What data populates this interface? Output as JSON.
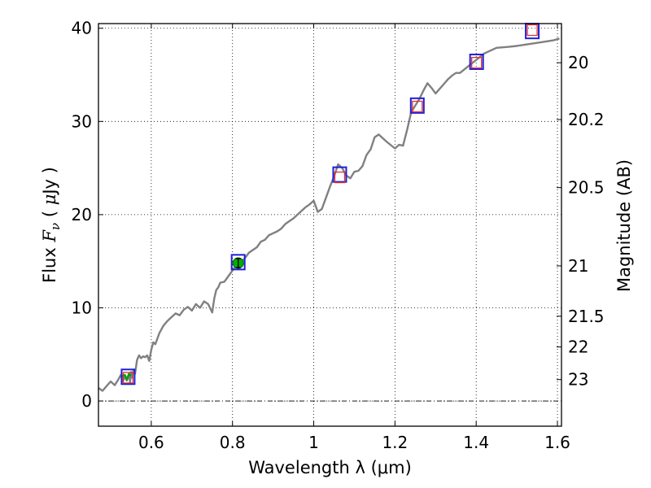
{
  "chart_data": {
    "type": "line",
    "xlabel": "Wavelength  λ (μm)",
    "ylabel_parts": [
      "Flux  ",
      "F",
      "ν",
      "  (  ",
      "μ",
      "Jy )"
    ],
    "ylabel_right": "Magnitude (AB)",
    "xlim": [
      0.47,
      1.61
    ],
    "ylim": [
      -2.7,
      40.5
    ],
    "x_ticks": [
      0.6,
      0.8,
      1.0,
      1.2,
      1.4,
      1.6
    ],
    "x_tick_labels": [
      "0.6",
      "0.8",
      "1",
      "1.2",
      "1.4",
      "1.6"
    ],
    "y_ticks": [
      0,
      10,
      20,
      30,
      40
    ],
    "y_tick_labels": [
      "0",
      "10",
      "20",
      "30",
      "40"
    ],
    "right_ticks": [
      {
        "label": "20",
        "flux": 36.3
      },
      {
        "label": "20.2",
        "flux": 30.2
      },
      {
        "label": "20.5",
        "flux": 22.9
      },
      {
        "label": "21",
        "flux": 14.5
      },
      {
        "label": "21.5",
        "flux": 9.1
      },
      {
        "label": "22",
        "flux": 5.8
      },
      {
        "label": "23",
        "flux": 2.3
      }
    ],
    "grid": true,
    "zero_line": 0,
    "series": [
      {
        "color": "#808080",
        "x": [
          0.47,
          0.48,
          0.49,
          0.5,
          0.51,
          0.52,
          0.525,
          0.53,
          0.535,
          0.54,
          0.545,
          0.548,
          0.55,
          0.553,
          0.556,
          0.56,
          0.565,
          0.57,
          0.575,
          0.58,
          0.585,
          0.59,
          0.595,
          0.6,
          0.605,
          0.61,
          0.62,
          0.63,
          0.64,
          0.65,
          0.66,
          0.67,
          0.68,
          0.69,
          0.7,
          0.71,
          0.72,
          0.73,
          0.74,
          0.75,
          0.755,
          0.76,
          0.765,
          0.77,
          0.78,
          0.79,
          0.8,
          0.81,
          0.82,
          0.83,
          0.84,
          0.85,
          0.86,
          0.87,
          0.88,
          0.89,
          0.9,
          0.91,
          0.92,
          0.93,
          0.94,
          0.95,
          0.96,
          0.97,
          0.98,
          0.99,
          1.0,
          1.01,
          1.02,
          1.03,
          1.04,
          1.05,
          1.06,
          1.07,
          1.08,
          1.09,
          1.1,
          1.11,
          1.12,
          1.13,
          1.14,
          1.15,
          1.16,
          1.18,
          1.2,
          1.21,
          1.22,
          1.23,
          1.24,
          1.26,
          1.27,
          1.28,
          1.29,
          1.3,
          1.31,
          1.32,
          1.33,
          1.34,
          1.35,
          1.36,
          1.38,
          1.4,
          1.42,
          1.45,
          1.48,
          1.5,
          1.53,
          1.56,
          1.59,
          1.605
        ],
        "y": [
          1.4,
          1.1,
          1.6,
          2.1,
          1.7,
          2.4,
          2.8,
          2.1,
          2.6,
          2.2,
          2.9,
          2.0,
          3.1,
          2.5,
          3.3,
          2.9,
          4.4,
          4.9,
          4.6,
          4.8,
          4.7,
          4.9,
          4.3,
          5.5,
          6.3,
          6.1,
          7.3,
          8.1,
          8.6,
          9.0,
          9.4,
          9.2,
          9.8,
          10.1,
          9.7,
          10.4,
          10.0,
          10.7,
          10.4,
          9.5,
          11.0,
          11.9,
          12.2,
          12.7,
          12.8,
          13.4,
          14.0,
          14.6,
          14.9,
          15.3,
          15.9,
          16.2,
          16.5,
          17.1,
          17.3,
          17.8,
          18.0,
          18.2,
          18.5,
          19.0,
          19.3,
          19.6,
          20.0,
          20.4,
          20.8,
          21.1,
          21.5,
          20.3,
          20.6,
          21.8,
          23.0,
          24.1,
          25.4,
          25.0,
          24.2,
          23.9,
          24.6,
          24.7,
          25.2,
          26.4,
          27.0,
          28.3,
          28.6,
          27.8,
          27.1,
          27.5,
          27.4,
          29.1,
          31.0,
          32.4,
          33.3,
          34.1,
          33.6,
          33.0,
          33.5,
          34.0,
          34.5,
          34.9,
          35.2,
          35.2,
          35.9,
          36.6,
          37.3,
          37.9,
          38.0,
          38.1,
          38.3,
          38.5,
          38.7,
          38.9
        ]
      },
      {
        "color": "#00a000",
        "x": [
          0.525,
          0.535,
          0.54,
          0.545,
          0.55
        ],
        "y": [
          2.6,
          2.8,
          2.3,
          2.9,
          2.7
        ]
      }
    ],
    "model_points": {
      "color": "#1f1fdc",
      "x": [
        0.543,
        0.814,
        1.064,
        1.255,
        1.401,
        1.538
      ],
      "y": [
        2.6,
        14.9,
        24.3,
        31.7,
        36.4,
        39.7
      ]
    },
    "observed_points": {
      "color": "#e03030",
      "x": [
        0.543,
        1.064,
        1.255,
        1.401,
        1.538
      ],
      "y": [
        2.5,
        24.0,
        31.6,
        36.3,
        39.8
      ]
    },
    "detection": {
      "color": "#00b000",
      "x": 0.814,
      "y": 14.8,
      "err": 0.5
    }
  }
}
